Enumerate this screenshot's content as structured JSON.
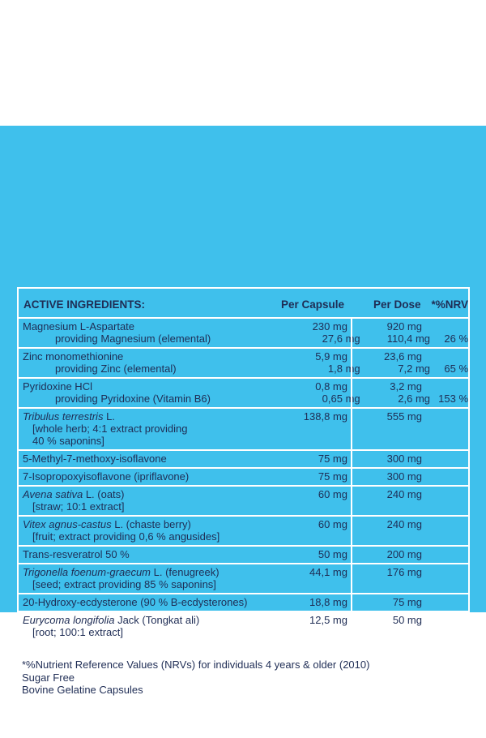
{
  "header": {
    "ingredient": "ACTIVE INGREDIENTS:",
    "per_capsule": "Per Capsule",
    "per_dose": "Per Dose",
    "nrv": "*%NRV"
  },
  "rows": [
    {
      "lines": [
        {
          "text": "Magnesium L-Aspartate",
          "per_capsule": "230 mg",
          "per_dose": "920 mg"
        },
        {
          "text": "providing Magnesium (elemental)",
          "per_capsule": "27,6 mg",
          "per_dose": "110,4 mg",
          "nrv": "26 %"
        }
      ]
    },
    {
      "lines": [
        {
          "text": "Zinc monomethionine",
          "per_capsule": "5,9 mg",
          "per_dose": "23,6 mg"
        },
        {
          "text": "providing Zinc (elemental)",
          "per_capsule": "1,8 mg",
          "per_dose": "7,2 mg",
          "nrv": "65 %"
        }
      ]
    },
    {
      "lines": [
        {
          "text": "Pyridoxine HCl",
          "per_capsule": "0,8 mg",
          "per_dose": "3,2 mg"
        },
        {
          "text": "providing Pyridoxine (Vitamin B6)",
          "per_capsule": "0,65 mg",
          "per_dose": "2,6 mg",
          "nrv": "153 %"
        }
      ]
    },
    {
      "lines": [
        {
          "italic": "Tribulus terrestris",
          "text": " L.",
          "per_capsule": "138,8 mg",
          "per_dose": "555 mg"
        },
        {
          "text": "[whole herb; 4:1 extract providing"
        },
        {
          "text": "40 % saponins]"
        }
      ]
    },
    {
      "lines": [
        {
          "text": "5-Methyl-7-methoxy-isoflavone",
          "per_capsule": "75 mg",
          "per_dose": "300 mg"
        }
      ]
    },
    {
      "lines": [
        {
          "text": "7-Isopropoxyisoflavone (ipriflavone)",
          "per_capsule": "75 mg",
          "per_dose": "300 mg"
        }
      ]
    },
    {
      "lines": [
        {
          "italic": "Avena sativa",
          "text": " L. (oats)",
          "per_capsule": "60 mg",
          "per_dose": "240 mg"
        },
        {
          "text": "[straw; 10:1 extract]"
        }
      ]
    },
    {
      "lines": [
        {
          "italic": "Vitex agnus-castus",
          "text": " L. (chaste berry)",
          "per_capsule": "60 mg",
          "per_dose": "240 mg"
        },
        {
          "text": "[fruit; extract providing 0,6 % angusides]"
        }
      ]
    },
    {
      "lines": [
        {
          "text": "Trans-resveratrol 50 %",
          "per_capsule": "50 mg",
          "per_dose": "200 mg"
        }
      ]
    },
    {
      "lines": [
        {
          "italic": "Trigonella foenum-graecum",
          "text": " L. (fenugreek)",
          "per_capsule": "44,1 mg",
          "per_dose": "176 mg"
        },
        {
          "text": "[seed; extract providing 85 % saponins]"
        }
      ]
    },
    {
      "lines": [
        {
          "text": "20-Hydroxy-ecdysterone (90 % B-ecdysterones)",
          "per_capsule": "18,8 mg",
          "per_dose": "75 mg"
        }
      ]
    },
    {
      "lines": [
        {
          "italic": "Eurycoma longifolia",
          "text": " Jack (Tongkat ali)",
          "per_capsule": "12,5 mg",
          "per_dose": "50 mg"
        },
        {
          "text": "[root; 100:1 extract]"
        }
      ]
    }
  ],
  "footer": [
    "*%Nutrient Reference Values (NRVs) for individuals 4 years & older (2010)",
    "Sugar Free",
    "Bovine Gelatine Capsules"
  ]
}
